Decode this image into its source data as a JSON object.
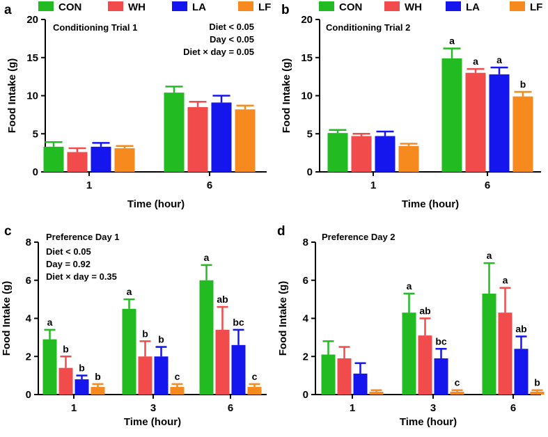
{
  "legend": [
    {
      "name": "CON",
      "color": "#22bb22"
    },
    {
      "name": "WH",
      "color": "#f24b4b"
    },
    {
      "name": "LA",
      "color": "#1515ee"
    },
    {
      "name": "LF",
      "color": "#f78a1e"
    }
  ],
  "chart_data": [
    {
      "type": "bar",
      "panel": "a",
      "title": "Conditioning Trial 1",
      "ylabel": "Food Intake (g)",
      "xlabel": "Time (hour)",
      "ylim": [
        0,
        20
      ],
      "yticks": [
        0,
        5,
        10,
        15,
        20
      ],
      "categories": [
        "1",
        "6"
      ],
      "stats": [
        "Diet < 0.05",
        "Day < 0.05",
        "Diet × day = 0.05"
      ],
      "series": [
        {
          "name": "CON",
          "values": [
            3.3,
            10.4
          ],
          "errors": [
            0.6,
            0.8
          ],
          "labels": [
            "",
            ""
          ]
        },
        {
          "name": "WH",
          "values": [
            2.6,
            8.5
          ],
          "errors": [
            0.5,
            0.7
          ],
          "labels": [
            "",
            ""
          ]
        },
        {
          "name": "LA",
          "values": [
            3.3,
            9.1
          ],
          "errors": [
            0.5,
            0.9
          ],
          "labels": [
            "",
            ""
          ]
        },
        {
          "name": "LF",
          "values": [
            3.1,
            8.2
          ],
          "errors": [
            0.3,
            0.5
          ],
          "labels": [
            "",
            ""
          ]
        }
      ]
    },
    {
      "type": "bar",
      "panel": "b",
      "title": "Conditioning Trial 2",
      "ylabel": "Food Intake (g)",
      "xlabel": "Time (hour)",
      "ylim": [
        0,
        20
      ],
      "yticks": [
        0,
        5,
        10,
        15,
        20
      ],
      "categories": [
        "1",
        "6"
      ],
      "stats": [],
      "series": [
        {
          "name": "CON",
          "values": [
            5.1,
            14.9
          ],
          "errors": [
            0.4,
            1.3
          ],
          "labels": [
            "",
            "a"
          ]
        },
        {
          "name": "WH",
          "values": [
            4.7,
            13.0
          ],
          "errors": [
            0.3,
            0.5
          ],
          "labels": [
            "",
            "a"
          ]
        },
        {
          "name": "LA",
          "values": [
            4.7,
            12.8
          ],
          "errors": [
            0.6,
            0.9
          ],
          "labels": [
            "",
            "a"
          ]
        },
        {
          "name": "LF",
          "values": [
            3.4,
            9.9
          ],
          "errors": [
            0.3,
            0.6
          ],
          "labels": [
            "",
            "b"
          ]
        }
      ]
    },
    {
      "type": "bar",
      "panel": "c",
      "title": "Preference Day 1",
      "ylabel": "Food Intake (g)",
      "xlabel": "Time (hour)",
      "ylim": [
        0,
        8
      ],
      "yticks": [
        0,
        2,
        4,
        6,
        8
      ],
      "categories": [
        "1",
        "3",
        "6"
      ],
      "stats": [
        "Diet < 0.05",
        "Day = 0.92",
        "Diet × day = 0.35"
      ],
      "series": [
        {
          "name": "CON",
          "values": [
            2.9,
            4.5,
            6.0
          ],
          "errors": [
            0.5,
            0.5,
            0.8
          ],
          "labels": [
            "a",
            "a",
            "a"
          ]
        },
        {
          "name": "WH",
          "values": [
            1.4,
            2.0,
            3.4
          ],
          "errors": [
            0.6,
            0.8,
            1.2
          ],
          "labels": [
            "b",
            "b",
            "ab"
          ]
        },
        {
          "name": "LA",
          "values": [
            0.8,
            2.0,
            2.6
          ],
          "errors": [
            0.2,
            0.5,
            0.8
          ],
          "labels": [
            "b",
            "b",
            "bc"
          ]
        },
        {
          "name": "LF",
          "values": [
            0.4,
            0.4,
            0.4
          ],
          "errors": [
            0.15,
            0.15,
            0.15
          ],
          "labels": [
            "b",
            "c",
            "c"
          ]
        }
      ]
    },
    {
      "type": "bar",
      "panel": "d",
      "title": "Preference Day 2",
      "ylabel": "Food Intake (g)",
      "xlabel": "Time (hour)",
      "ylim": [
        0,
        8
      ],
      "yticks": [
        0,
        2,
        4,
        6,
        8
      ],
      "categories": [
        "1",
        "3",
        "6"
      ],
      "stats": [],
      "series": [
        {
          "name": "CON",
          "values": [
            2.1,
            4.3,
            5.3
          ],
          "errors": [
            0.7,
            1.0,
            1.6
          ],
          "labels": [
            "",
            "a",
            "a"
          ]
        },
        {
          "name": "WH",
          "values": [
            1.9,
            3.1,
            4.3
          ],
          "errors": [
            0.6,
            0.9,
            1.3
          ],
          "labels": [
            "",
            "ab",
            "a"
          ]
        },
        {
          "name": "LA",
          "values": [
            1.1,
            1.9,
            2.4
          ],
          "errors": [
            0.55,
            0.5,
            0.65
          ],
          "labels": [
            "",
            "bc",
            "ab"
          ]
        },
        {
          "name": "LF",
          "values": [
            0.15,
            0.15,
            0.15
          ],
          "errors": [
            0.08,
            0.08,
            0.08
          ],
          "labels": [
            "",
            "c",
            "b"
          ]
        }
      ]
    }
  ]
}
